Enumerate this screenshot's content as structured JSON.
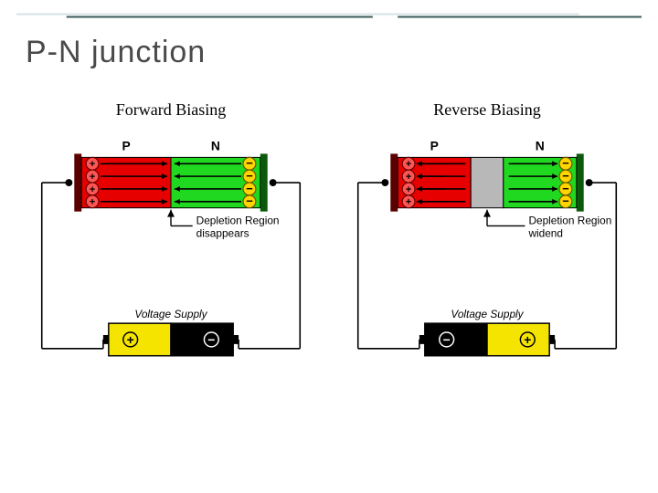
{
  "title": "P-N junction",
  "rule": {
    "top_color": "#d7e3e3",
    "bottom_color": "#3b5a5a",
    "segments_top": [
      [
        0,
        0.9
      ]
    ],
    "segments_bottom": [
      [
        0.08,
        0.57
      ],
      [
        0.61,
        1.0
      ]
    ]
  },
  "panels": [
    {
      "title": "Forward Biasing",
      "p_label": "P",
      "n_label": "N",
      "depletion_text": "Depletion Region\ndisappears",
      "supply_label": "Voltage Supply",
      "depletion_width": 0,
      "battery_left_color": "#f4e400",
      "battery_right_color": "#000000",
      "battery_left_symbol": "+",
      "battery_right_symbol": "−",
      "arrow_direction": "inward"
    },
    {
      "title": "Reverse Biasing",
      "p_label": "P",
      "n_label": "N",
      "depletion_text": "Depletion Region\nwidend",
      "supply_label": "Voltage Supply",
      "depletion_width": 36,
      "battery_left_color": "#000000",
      "battery_right_color": "#f4e400",
      "battery_left_symbol": "−",
      "battery_right_symbol": "+",
      "arrow_direction": "outward"
    }
  ],
  "style": {
    "p_color": "#e60000",
    "n_color": "#1fd81f",
    "depletion_color": "#b8b8b8",
    "wire_color": "#000000",
    "hole_fill": "#ff5555",
    "hole_stroke": "#6a0000",
    "electron_fill": "#ffd400",
    "electron_stroke": "#6a5400",
    "arrow_color": "#000000",
    "node_r": 3,
    "charge_r": 7,
    "rows": 4
  }
}
